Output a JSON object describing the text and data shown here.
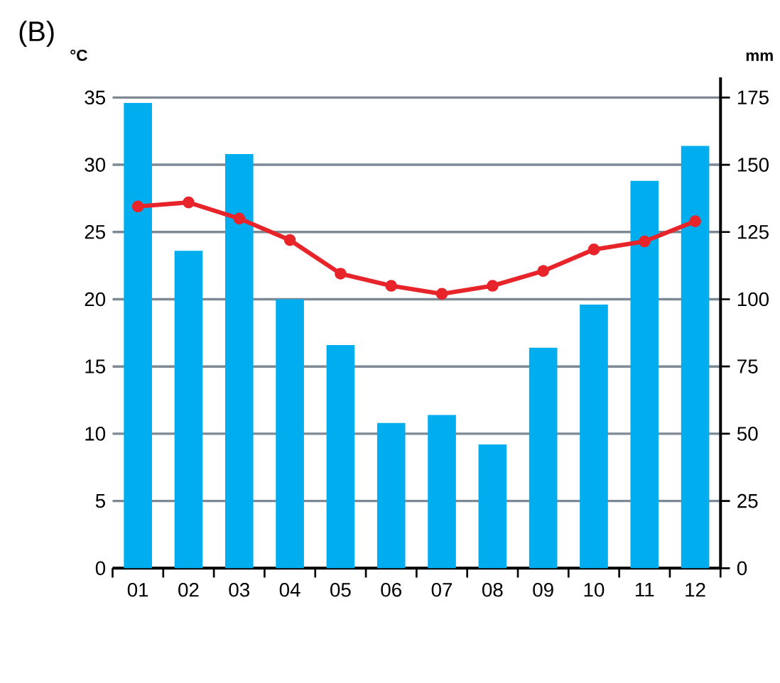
{
  "chart_data": {
    "type": "bar",
    "title": "(B)",
    "ylabel": "°C",
    "y2label": "mm",
    "categories": [
      "01",
      "02",
      "03",
      "04",
      "05",
      "06",
      "07",
      "08",
      "09",
      "10",
      "11",
      "12"
    ],
    "series": [
      {
        "axis": "y2",
        "color": "#00aeef",
        "values": [
          173,
          118,
          154,
          100,
          83,
          54,
          57,
          46,
          82,
          98,
          144,
          157
        ]
      },
      {
        "type": "line",
        "axis": "y",
        "color": "#e8242b",
        "values": [
          26.9,
          27.2,
          26.0,
          24.4,
          21.9,
          21.0,
          20.4,
          21.0,
          22.1,
          23.7,
          24.3,
          25.8
        ]
      }
    ],
    "ylim": [
      0,
      36.5
    ],
    "yticks": [
      0,
      5,
      10,
      15,
      20,
      25,
      30,
      35
    ],
    "y2lim": [
      0,
      182.5
    ],
    "y2ticks": [
      0,
      25,
      50,
      75,
      100,
      125,
      150,
      175
    ],
    "grid": "y",
    "marker": "circle",
    "line_style": "solid"
  }
}
